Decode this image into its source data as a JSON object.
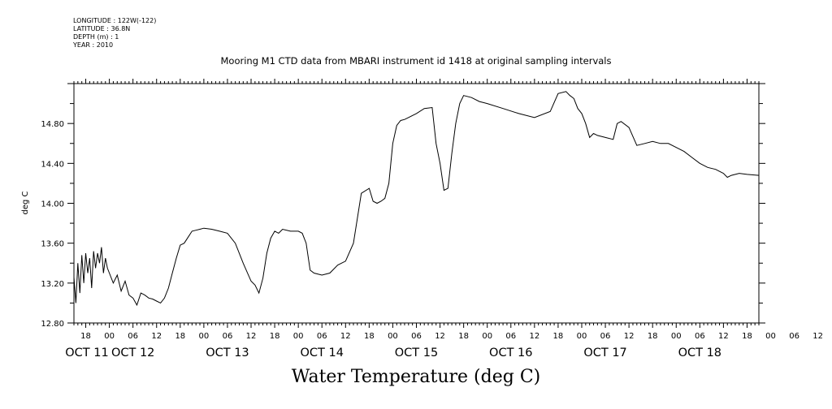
{
  "meta": {
    "longitude": "LONGITUDE : 122W(-122)",
    "latitude": "LATITUDE : 36.8N",
    "depth": "DEPTH (m) : 1",
    "year": "YEAR : 2010"
  },
  "chart_data": {
    "type": "line",
    "title": "Mooring M1 CTD data from MBARI instrument id 1418 at original sampling intervals",
    "xlabel": "Water Temperature (deg C)",
    "ylabel": "deg C",
    "xlim": [
      "2010-10-11T15:00",
      "2010-10-18T21:00"
    ],
    "ylim": [
      12.8,
      15.2
    ],
    "yticks": [
      "12.80",
      "13.20",
      "13.60",
      "14.00",
      "14.40",
      "14.80"
    ],
    "hour_ticks": [
      "18",
      "00",
      "06",
      "12",
      "18",
      "00",
      "06",
      "12",
      "18",
      "00",
      "06",
      "12",
      "18",
      "00",
      "06",
      "12",
      "18",
      "00",
      "06",
      "12",
      "18",
      "00",
      "06",
      "12",
      "18",
      "00",
      "06",
      "12",
      "18",
      "00",
      "06",
      "12"
    ],
    "day_labels": [
      "OCT 11",
      "OCT 12",
      "OCT 13",
      "OCT 14",
      "OCT 15",
      "OCT 16",
      "OCT 17",
      "OCT 18"
    ],
    "series": [
      {
        "x": [
          "2010-10-11T15:00",
          "2010-10-11T15:30",
          "2010-10-11T16:00",
          "2010-10-11T16:30",
          "2010-10-11T17:00",
          "2010-10-11T17:30",
          "2010-10-11T18:00",
          "2010-10-11T18:30",
          "2010-10-11T19:00",
          "2010-10-11T19:30",
          "2010-10-11T20:00",
          "2010-10-11T20:30",
          "2010-10-11T21:00",
          "2010-10-11T21:30",
          "2010-10-11T22:00",
          "2010-10-11T22:30",
          "2010-10-11T23:00",
          "2010-10-11T23:30",
          "2010-10-12T00:00",
          "2010-10-12T01:00",
          "2010-10-12T02:00",
          "2010-10-12T03:00",
          "2010-10-12T04:00",
          "2010-10-12T05:00",
          "2010-10-12T06:00",
          "2010-10-12T07:00",
          "2010-10-12T08:00",
          "2010-10-12T09:00",
          "2010-10-12T10:00",
          "2010-10-12T11:00",
          "2010-10-12T12:00",
          "2010-10-12T13:00",
          "2010-10-12T14:00",
          "2010-10-12T15:00",
          "2010-10-12T16:00",
          "2010-10-12T17:00",
          "2010-10-12T18:00",
          "2010-10-12T19:00",
          "2010-10-12T20:00",
          "2010-10-12T21:00",
          "2010-10-12T22:00",
          "2010-10-12T23:00",
          "2010-10-13T00:00",
          "2010-10-13T02:00",
          "2010-10-13T04:00",
          "2010-10-13T06:00",
          "2010-10-13T08:00",
          "2010-10-13T10:00",
          "2010-10-13T12:00",
          "2010-10-13T13:00",
          "2010-10-13T14:00",
          "2010-10-13T15:00",
          "2010-10-13T16:00",
          "2010-10-13T17:00",
          "2010-10-13T18:00",
          "2010-10-13T19:00",
          "2010-10-13T20:00",
          "2010-10-13T22:00",
          "2010-10-14T00:00",
          "2010-10-14T01:00",
          "2010-10-14T02:00",
          "2010-10-14T03:00",
          "2010-10-14T04:00",
          "2010-10-14T06:00",
          "2010-10-14T08:00",
          "2010-10-14T10:00",
          "2010-10-14T12:00",
          "2010-10-14T14:00",
          "2010-10-14T16:00",
          "2010-10-14T18:00",
          "2010-10-14T19:00",
          "2010-10-14T20:00",
          "2010-10-14T21:00",
          "2010-10-14T22:00",
          "2010-10-14T23:00",
          "2010-10-15T00:00",
          "2010-10-15T01:00",
          "2010-10-15T02:00",
          "2010-10-15T03:00",
          "2010-10-15T04:00",
          "2010-10-15T06:00",
          "2010-10-15T08:00",
          "2010-10-15T10:00",
          "2010-10-15T11:00",
          "2010-10-15T12:00",
          "2010-10-15T13:00",
          "2010-10-15T14:00",
          "2010-10-15T15:00",
          "2010-10-15T16:00",
          "2010-10-15T17:00",
          "2010-10-15T18:00",
          "2010-10-15T20:00",
          "2010-10-15T22:00",
          "2010-10-16T00:00",
          "2010-10-16T04:00",
          "2010-10-16T08:00",
          "2010-10-16T12:00",
          "2010-10-16T16:00",
          "2010-10-16T18:00",
          "2010-10-16T20:00",
          "2010-10-16T21:00",
          "2010-10-16T22:00",
          "2010-10-16T23:00",
          "2010-10-17T00:00",
          "2010-10-17T01:00",
          "2010-10-17T02:00",
          "2010-10-17T03:00",
          "2010-10-17T04:00",
          "2010-10-17T06:00",
          "2010-10-17T08:00",
          "2010-10-17T09:00",
          "2010-10-17T10:00",
          "2010-10-17T12:00",
          "2010-10-17T14:00",
          "2010-10-17T16:00",
          "2010-10-17T18:00",
          "2010-10-17T20:00",
          "2010-10-17T22:00",
          "2010-10-18T00:00",
          "2010-10-18T02:00",
          "2010-10-18T04:00",
          "2010-10-18T06:00",
          "2010-10-18T08:00",
          "2010-10-18T10:00",
          "2010-10-18T12:00",
          "2010-10-18T13:00",
          "2010-10-18T14:00",
          "2010-10-18T16:00",
          "2010-10-18T18:00",
          "2010-10-18T21:00"
        ],
        "values": [
          13.26,
          13.0,
          13.4,
          13.1,
          13.48,
          13.2,
          13.5,
          13.3,
          13.45,
          13.15,
          13.52,
          13.35,
          13.5,
          13.4,
          13.56,
          13.3,
          13.45,
          13.35,
          13.3,
          13.2,
          13.28,
          13.12,
          13.22,
          13.08,
          13.05,
          12.98,
          13.1,
          13.08,
          13.05,
          13.04,
          13.02,
          13.0,
          13.05,
          13.15,
          13.3,
          13.45,
          13.58,
          13.6,
          13.66,
          13.72,
          13.73,
          13.74,
          13.75,
          13.74,
          13.72,
          13.7,
          13.6,
          13.4,
          13.22,
          13.18,
          13.1,
          13.25,
          13.5,
          13.65,
          13.72,
          13.7,
          13.74,
          13.72,
          13.72,
          13.7,
          13.6,
          13.33,
          13.3,
          13.28,
          13.3,
          13.38,
          13.42,
          13.6,
          14.1,
          14.15,
          14.02,
          14.0,
          14.02,
          14.05,
          14.2,
          14.6,
          14.78,
          14.83,
          14.84,
          14.86,
          14.9,
          14.95,
          14.96,
          14.6,
          14.4,
          14.13,
          14.15,
          14.5,
          14.8,
          15.0,
          15.08,
          15.06,
          15.02,
          15.0,
          14.95,
          14.9,
          14.86,
          14.92,
          15.1,
          15.12,
          15.08,
          15.05,
          14.95,
          14.9,
          14.8,
          14.66,
          14.7,
          14.68,
          14.66,
          14.64,
          14.8,
          14.82,
          14.76,
          14.58,
          14.6,
          14.62,
          14.6,
          14.6,
          14.56,
          14.52,
          14.46,
          14.4,
          14.36,
          14.34,
          14.3,
          14.26,
          14.28,
          14.3,
          14.29,
          14.28
        ]
      }
    ]
  }
}
